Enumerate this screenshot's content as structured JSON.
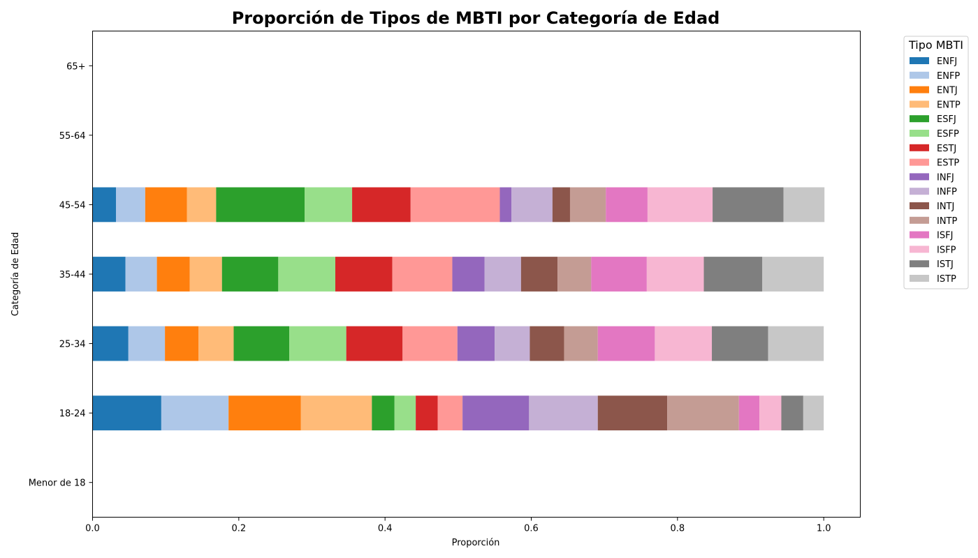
{
  "chart_data": {
    "type": "bar",
    "orientation": "horizontal",
    "stacked": true,
    "title": "Proporción de Tipos de MBTI por Categoría de Edad",
    "xlabel": "Proporción",
    "ylabel": "Categoría de Edad",
    "xlim": [
      0,
      1.05
    ],
    "xticks": [
      "0.0",
      "0.2",
      "0.4",
      "0.6",
      "0.8",
      "1.0"
    ],
    "grid": false,
    "legend_title": "Tipo MBTI",
    "legend_position": "outside-right",
    "categories": [
      "Menor de 18",
      "18-24",
      "25-34",
      "35-44",
      "45-54",
      "55-64",
      "65+"
    ],
    "series": [
      {
        "name": "ENFJ",
        "color": "#1f77b4",
        "values": [
          0,
          0.094,
          0.049,
          0.045,
          0.032,
          0,
          0
        ]
      },
      {
        "name": "ENFP",
        "color": "#aec7e8",
        "values": [
          0,
          0.092,
          0.05,
          0.043,
          0.04,
          0,
          0
        ]
      },
      {
        "name": "ENTJ",
        "color": "#ff7f0e",
        "values": [
          0,
          0.099,
          0.046,
          0.045,
          0.057,
          0,
          0
        ]
      },
      {
        "name": "ENTP",
        "color": "#ffbb78",
        "values": [
          0,
          0.097,
          0.048,
          0.044,
          0.04,
          0,
          0
        ]
      },
      {
        "name": "ESFJ",
        "color": "#2ca02c",
        "values": [
          0,
          0.031,
          0.076,
          0.077,
          0.121,
          0,
          0
        ]
      },
      {
        "name": "ESFP",
        "color": "#98df8a",
        "values": [
          0,
          0.029,
          0.078,
          0.078,
          0.065,
          0,
          0
        ]
      },
      {
        "name": "ESTJ",
        "color": "#d62728",
        "values": [
          0,
          0.03,
          0.077,
          0.078,
          0.08,
          0,
          0
        ]
      },
      {
        "name": "ESTP",
        "color": "#ff9896",
        "values": [
          0,
          0.034,
          0.075,
          0.082,
          0.122,
          0,
          0
        ]
      },
      {
        "name": "INFJ",
        "color": "#9467bd",
        "values": [
          0,
          0.091,
          0.051,
          0.044,
          0.016,
          0,
          0
        ]
      },
      {
        "name": "INFP",
        "color": "#c5b0d5",
        "values": [
          0,
          0.094,
          0.048,
          0.05,
          0.056,
          0,
          0
        ]
      },
      {
        "name": "INTJ",
        "color": "#8c564b",
        "values": [
          0,
          0.095,
          0.047,
          0.05,
          0.024,
          0,
          0
        ]
      },
      {
        "name": "INTP",
        "color": "#c49c94",
        "values": [
          0,
          0.098,
          0.046,
          0.046,
          0.049,
          0,
          0
        ]
      },
      {
        "name": "ISFJ",
        "color": "#e377c2",
        "values": [
          0,
          0.028,
          0.078,
          0.076,
          0.057,
          0,
          0
        ]
      },
      {
        "name": "ISFP",
        "color": "#f7b6d2",
        "values": [
          0,
          0.03,
          0.078,
          0.078,
          0.089,
          0,
          0
        ]
      },
      {
        "name": "ISTJ",
        "color": "#7f7f7f",
        "values": [
          0,
          0.03,
          0.077,
          0.08,
          0.097,
          0,
          0
        ]
      },
      {
        "name": "ISTP",
        "color": "#c7c7c7",
        "values": [
          0,
          0.028,
          0.076,
          0.084,
          0.056,
          0,
          0
        ]
      }
    ]
  }
}
